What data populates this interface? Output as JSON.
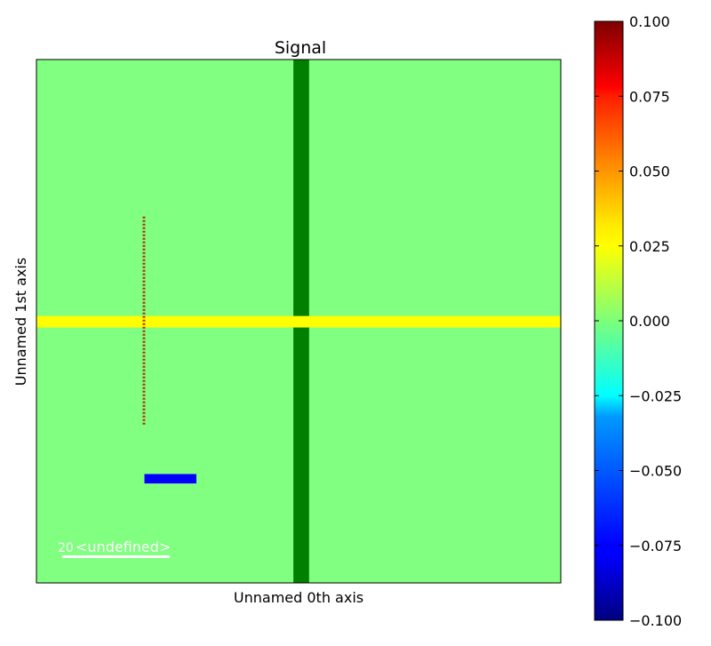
{
  "chart_data": {
    "type": "heatmap",
    "title": "Signal",
    "xlabel": "Unnamed 0th axis",
    "ylabel": "Unnamed 1st axis",
    "xlim": [
      0,
      100
    ],
    "ylim": [
      0,
      100
    ],
    "background_value": 0.0,
    "features": [
      {
        "name": "vertical-stripe",
        "x": [
          49,
          52
        ],
        "y": [
          0,
          100
        ],
        "value": -0.02,
        "color": "#007f00"
      },
      {
        "name": "horizontal-stripe",
        "x": [
          0,
          100
        ],
        "y": [
          48.8,
          51
        ],
        "value": 0.035,
        "color": "#ffff00"
      },
      {
        "name": "dotted-line",
        "x": [
          20.3,
          20.7
        ],
        "y": [
          30,
          70
        ],
        "value": 0.085,
        "color": "#b03000",
        "style": "dotted"
      },
      {
        "name": "blue-bar",
        "x": [
          20.6,
          30.5
        ],
        "y": [
          19.0,
          20.8
        ],
        "value": -0.075,
        "color": "#0000ff"
      }
    ],
    "colorbar": {
      "colormap": "jet",
      "min": -0.1,
      "max": 0.1,
      "ticks": [
        "0.100",
        "0.075",
        "0.050",
        "0.025",
        "0.000",
        "−0.025",
        "−0.050",
        "−0.075",
        "−0.100"
      ]
    },
    "scalebar": {
      "value": "20",
      "unit": "<undefined>"
    }
  },
  "colors": {
    "background_field": "#80ff80",
    "axes_frame": "#000000",
    "scalebar": "#ffffff"
  }
}
